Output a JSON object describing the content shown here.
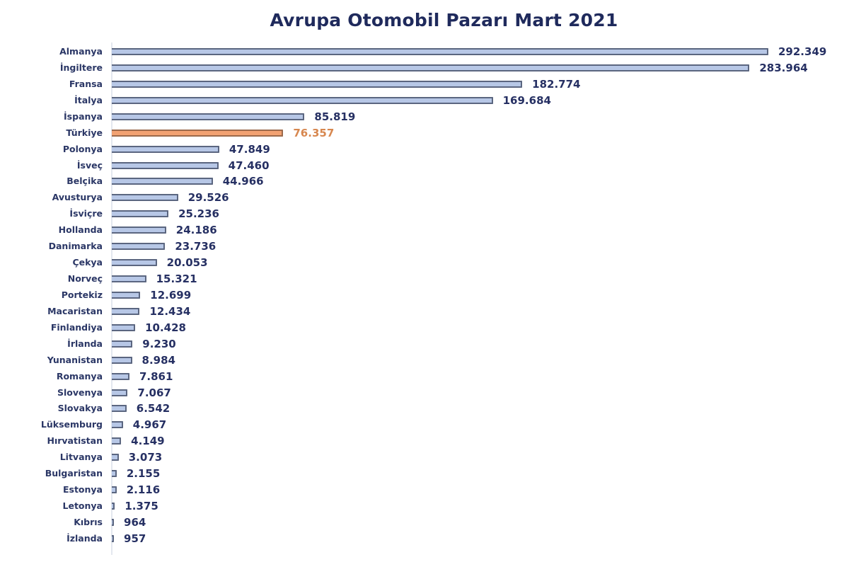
{
  "chart_data": {
    "type": "bar",
    "orientation": "horizontal",
    "title": "Avrupa Otomobil Pazarı Mart 2021",
    "xlabel": "",
    "ylabel": "",
    "grid": false,
    "legend": null,
    "highlight": "Türkiye",
    "colors": {
      "bar": "#b7c7e6",
      "bar_border": "#5b6680",
      "highlight": "#f2a272",
      "highlight_text": "#d7874f",
      "text": "#263063",
      "title": "#1f2a5c"
    },
    "categories": [
      "Almanya",
      "İngiltere",
      "Fransa",
      "İtalya",
      "İspanya",
      "Türkiye",
      "Polonya",
      "İsveç",
      "Belçika",
      "Avusturya",
      "İsviçre",
      "Hollanda",
      "Danimarka",
      "Çekya",
      "Norveç",
      "Portekiz",
      "Macaristan",
      "Finlandiya",
      "İrlanda",
      "Yunanistan",
      "Romanya",
      "Slovenya",
      "Slovakya",
      "Lüksemburg",
      "Hırvatistan",
      "Litvanya",
      "Bulgaristan",
      "Estonya",
      "Letonya",
      "Kıbrıs",
      "İzlanda"
    ],
    "values": [
      292349,
      283964,
      182774,
      169684,
      85819,
      76357,
      47849,
      47460,
      44966,
      29526,
      25236,
      24186,
      23736,
      20053,
      15321,
      12699,
      12434,
      10428,
      9230,
      8984,
      7861,
      7067,
      6542,
      4967,
      4149,
      3073,
      2155,
      2116,
      1375,
      964,
      957
    ],
    "value_labels": [
      "292.349",
      "283.964",
      "182.774",
      "169.684",
      "85.819",
      "76.357",
      "47.849",
      "47.460",
      "44.966",
      "29.526",
      "25.236",
      "24.186",
      "23.736",
      "20.053",
      "15.321",
      "12.699",
      "12.434",
      "10.428",
      "9.230",
      "8.984",
      "7.861",
      "7.067",
      "6.542",
      "4.967",
      "4.149",
      "3.073",
      "2.155",
      "2.116",
      "1.375",
      "964",
      "957"
    ]
  }
}
